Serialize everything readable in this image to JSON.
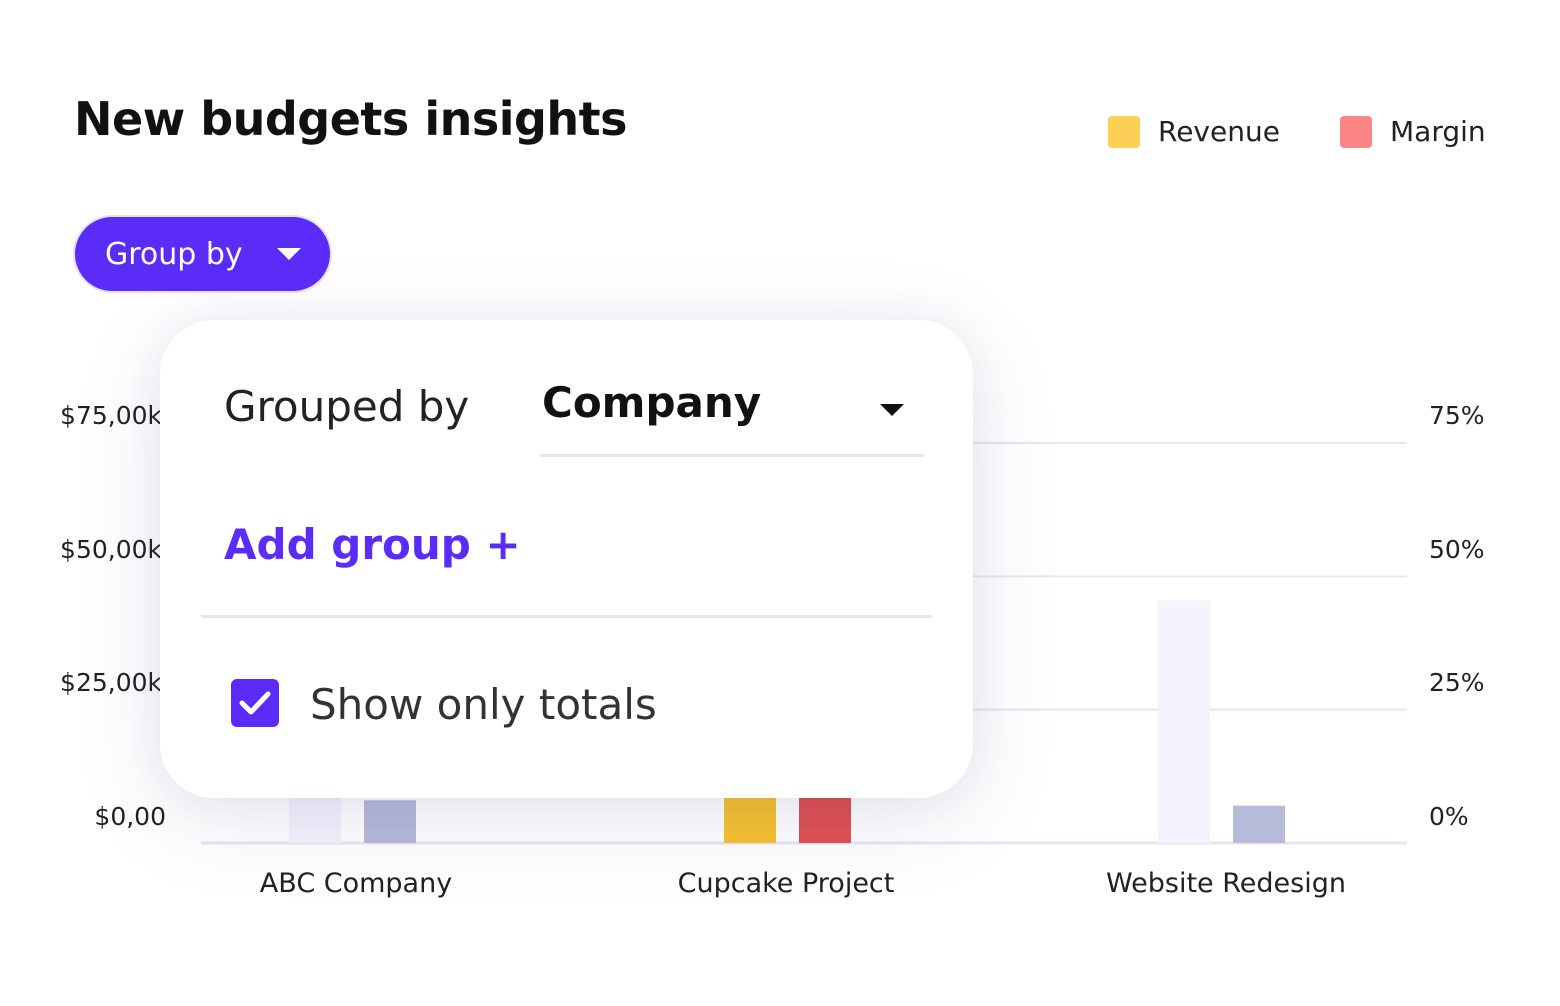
{
  "title": "New budgets insights",
  "legend": [
    {
      "label": "Revenue",
      "color": "#fdcf56"
    },
    {
      "label": "Margin",
      "color": "#fc8585"
    }
  ],
  "group_by_button": {
    "label": "Group by",
    "icon": "caret-down-icon"
  },
  "popup": {
    "grouped_by_label": "Grouped by",
    "grouped_by_value": "Company",
    "add_group_label": "Add group +",
    "show_totals_label": "Show only totals",
    "show_totals_checked": true,
    "accent": "#5b2cf7"
  },
  "chart_data": {
    "type": "bar",
    "categories": [
      "ABC Company",
      "Cupcake Project",
      "Website Redesign"
    ],
    "series": [
      {
        "name": "Revenue",
        "axis": "left",
        "values": [
          20000,
          30000,
          45500
        ],
        "color": "#f7c230"
      },
      {
        "name": "Margin",
        "axis": "right",
        "values": [
          8,
          15,
          7
        ],
        "color": "#e05252"
      }
    ],
    "muted_colors": {
      "revenue": "#f3f4fd",
      "margin": "#b7bad8"
    },
    "highlighted_category": "Cupcake Project",
    "left_axis": {
      "ticks": [
        "$0,00",
        "$25,00k",
        "$50,00k",
        "$75,00k"
      ],
      "range": [
        0,
        75000
      ]
    },
    "right_axis": {
      "ticks": [
        "0%",
        "25%",
        "50%",
        "75%"
      ],
      "range": [
        0,
        75
      ]
    },
    "grid": true,
    "legend_position": "top-right"
  }
}
